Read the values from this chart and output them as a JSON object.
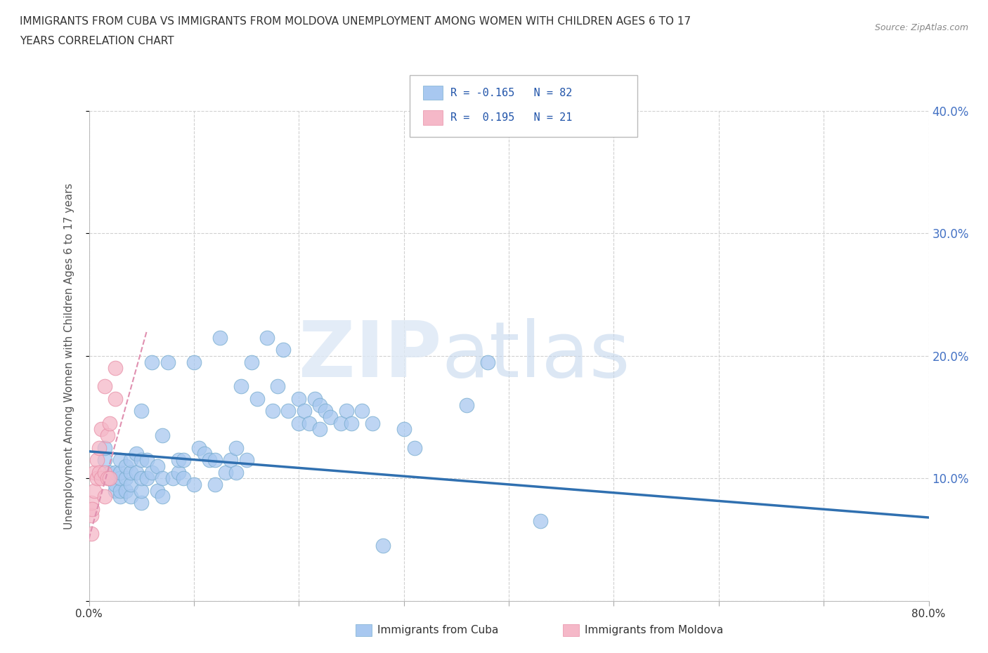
{
  "title_line1": "IMMIGRANTS FROM CUBA VS IMMIGRANTS FROM MOLDOVA UNEMPLOYMENT AMONG WOMEN WITH CHILDREN AGES 6 TO 17",
  "title_line2": "YEARS CORRELATION CHART",
  "source_text": "Source: ZipAtlas.com",
  "ylabel": "Unemployment Among Women with Children Ages 6 to 17 years",
  "xlim": [
    0.0,
    0.8
  ],
  "ylim": [
    0.0,
    0.4
  ],
  "xticks": [
    0.0,
    0.1,
    0.2,
    0.3,
    0.4,
    0.5,
    0.6,
    0.7,
    0.8
  ],
  "yticks": [
    0.0,
    0.1,
    0.2,
    0.3,
    0.4
  ],
  "right_yticklabels": [
    "",
    "10.0%",
    "20.0%",
    "30.0%",
    "40.0%"
  ],
  "cuba_color": "#a8c8f0",
  "cuba_edge_color": "#7aaed0",
  "moldova_color": "#f5b8c8",
  "moldova_edge_color": "#e890a8",
  "cuba_line_color": "#3070b0",
  "moldova_line_color": "#e090b0",
  "watermark_zip_color": "#d0dff0",
  "watermark_atlas_color": "#b8cce0",
  "cuba_x": [
    0.015,
    0.015,
    0.02,
    0.02,
    0.025,
    0.025,
    0.025,
    0.03,
    0.03,
    0.03,
    0.03,
    0.03,
    0.035,
    0.035,
    0.035,
    0.04,
    0.04,
    0.04,
    0.04,
    0.045,
    0.045,
    0.05,
    0.05,
    0.05,
    0.05,
    0.05,
    0.055,
    0.055,
    0.06,
    0.06,
    0.065,
    0.065,
    0.07,
    0.07,
    0.07,
    0.075,
    0.08,
    0.085,
    0.085,
    0.09,
    0.09,
    0.1,
    0.1,
    0.105,
    0.11,
    0.115,
    0.12,
    0.12,
    0.125,
    0.13,
    0.135,
    0.14,
    0.14,
    0.145,
    0.15,
    0.155,
    0.16,
    0.17,
    0.175,
    0.18,
    0.185,
    0.19,
    0.2,
    0.2,
    0.205,
    0.21,
    0.215,
    0.22,
    0.22,
    0.225,
    0.23,
    0.24,
    0.245,
    0.25,
    0.26,
    0.27,
    0.28,
    0.3,
    0.31,
    0.36,
    0.38,
    0.43
  ],
  "cuba_y": [
    0.115,
    0.125,
    0.1,
    0.105,
    0.09,
    0.095,
    0.105,
    0.085,
    0.09,
    0.1,
    0.105,
    0.115,
    0.09,
    0.1,
    0.11,
    0.085,
    0.095,
    0.105,
    0.115,
    0.105,
    0.12,
    0.08,
    0.09,
    0.1,
    0.115,
    0.155,
    0.1,
    0.115,
    0.105,
    0.195,
    0.09,
    0.11,
    0.085,
    0.1,
    0.135,
    0.195,
    0.1,
    0.105,
    0.115,
    0.1,
    0.115,
    0.095,
    0.195,
    0.125,
    0.12,
    0.115,
    0.095,
    0.115,
    0.215,
    0.105,
    0.115,
    0.105,
    0.125,
    0.175,
    0.115,
    0.195,
    0.165,
    0.215,
    0.155,
    0.175,
    0.205,
    0.155,
    0.145,
    0.165,
    0.155,
    0.145,
    0.165,
    0.14,
    0.16,
    0.155,
    0.15,
    0.145,
    0.155,
    0.145,
    0.155,
    0.145,
    0.045,
    0.14,
    0.125,
    0.16,
    0.195,
    0.065
  ],
  "moldova_x": [
    0.002,
    0.002,
    0.002,
    0.003,
    0.005,
    0.005,
    0.008,
    0.008,
    0.01,
    0.01,
    0.012,
    0.012,
    0.015,
    0.015,
    0.015,
    0.018,
    0.018,
    0.02,
    0.02,
    0.025,
    0.025
  ],
  "moldova_y": [
    0.055,
    0.07,
    0.08,
    0.075,
    0.09,
    0.105,
    0.1,
    0.115,
    0.105,
    0.125,
    0.1,
    0.14,
    0.085,
    0.105,
    0.175,
    0.1,
    0.135,
    0.1,
    0.145,
    0.165,
    0.19
  ],
  "cuba_trend_x": [
    0.0,
    0.8
  ],
  "cuba_trend_y": [
    0.122,
    0.068
  ],
  "moldova_trend_x": [
    -0.01,
    0.055
  ],
  "moldova_trend_y": [
    0.02,
    0.22
  ]
}
